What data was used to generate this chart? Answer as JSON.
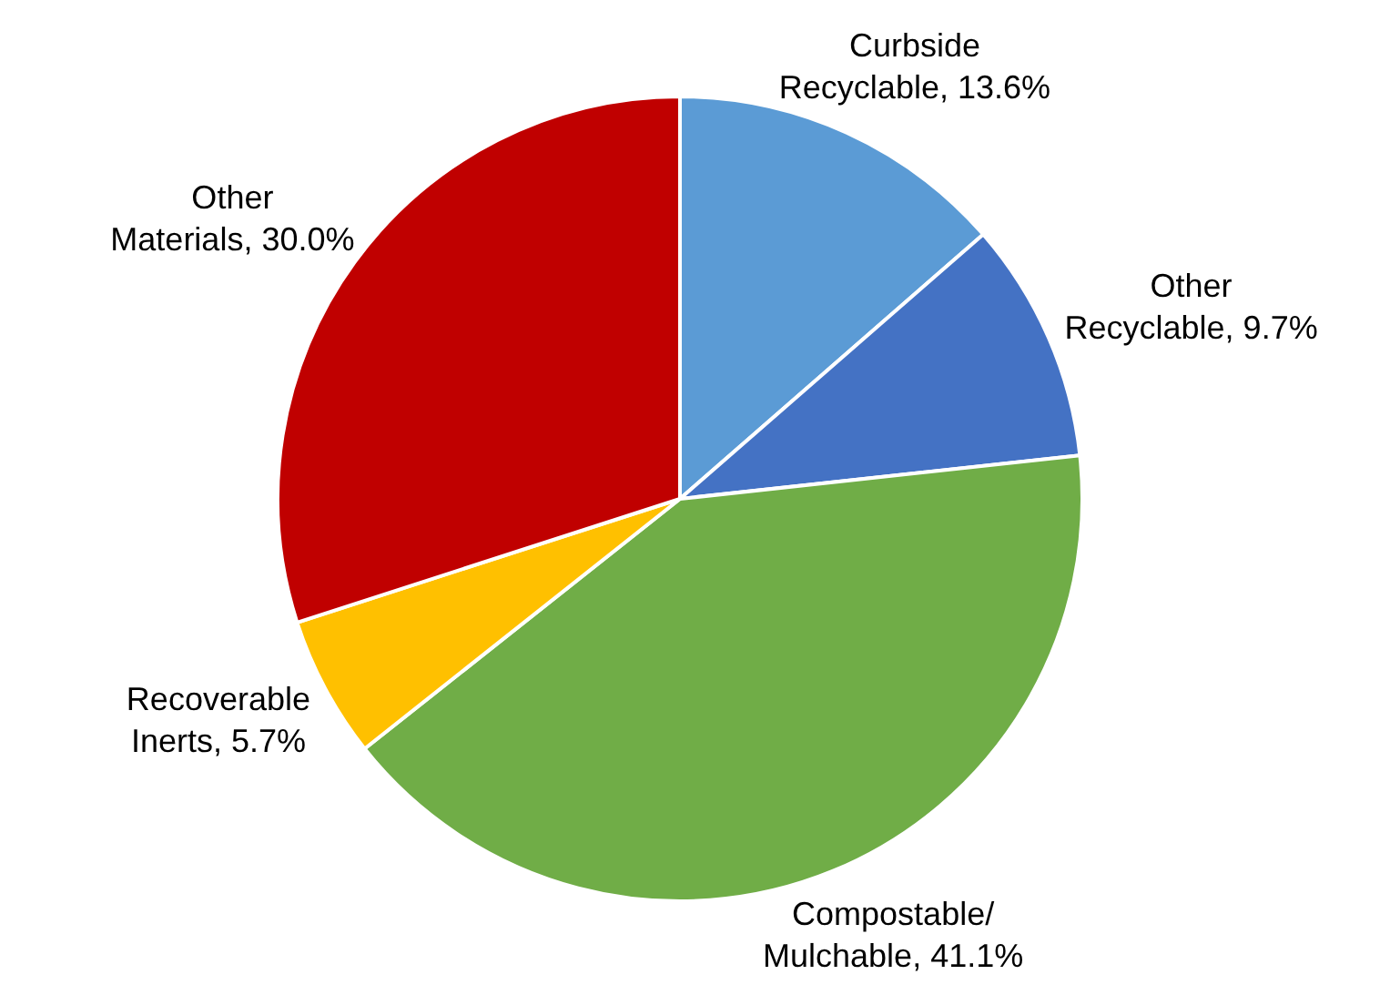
{
  "chart_data": {
    "type": "pie",
    "categories": [
      "Curbside Recyclable",
      "Other Recyclable",
      "Compostable/ Mulchable",
      "Recoverable Inerts",
      "Other Materials"
    ],
    "values": [
      13.6,
      9.7,
      41.1,
      5.7,
      30.0
    ],
    "value_labels": [
      "13.6%",
      "9.7%",
      "41.1%",
      "5.7%",
      "30.0%"
    ],
    "colors": [
      "#5b9bd5",
      "#4472c4",
      "#70ad47",
      "#ffc000",
      "#c00000"
    ],
    "legend": false
  }
}
